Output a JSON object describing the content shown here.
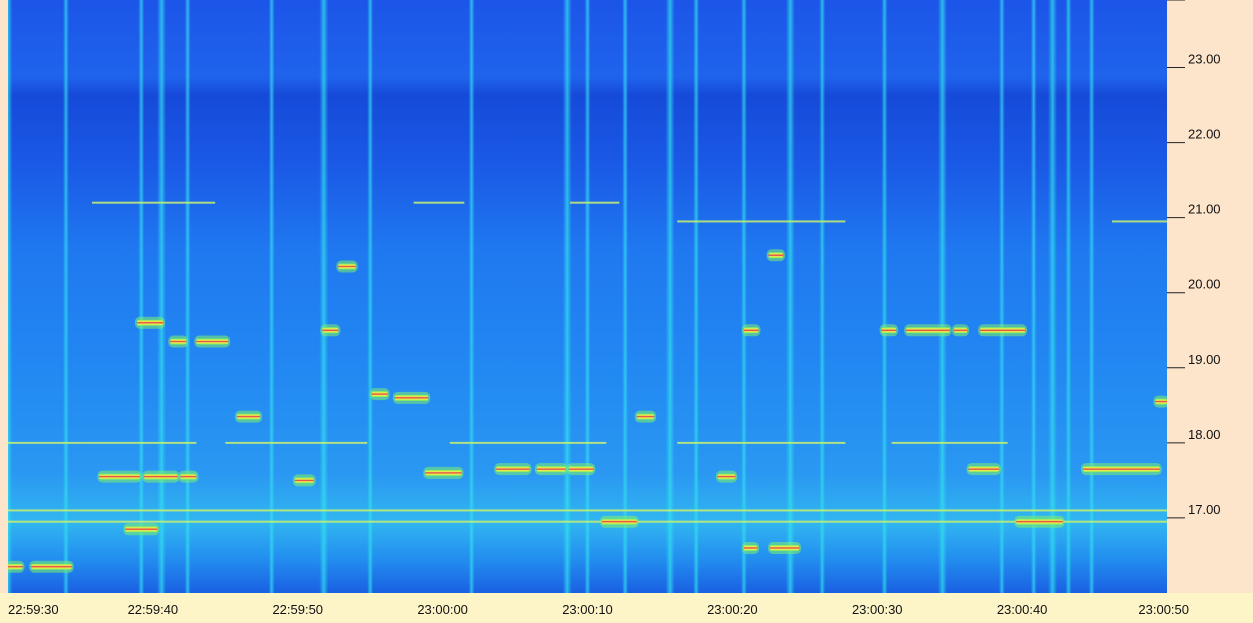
{
  "chart_data": {
    "type": "heatmap",
    "title": "",
    "xlabel": "",
    "ylabel": "",
    "x_ticks": [
      "22:59:30",
      "22:59:40",
      "22:59:50",
      "23:00:00",
      "23:00:10",
      "23:00:20",
      "23:00:30",
      "23:00:40",
      "23:00:50"
    ],
    "y_ticks": [
      "23.00",
      "22.00",
      "21.00",
      "20.00",
      "19.00",
      "18.00",
      "17.00"
    ],
    "xlim": [
      "22:59:30",
      "23:00:50"
    ],
    "ylim": [
      16.0,
      23.9
    ],
    "colors": {
      "background_low": "#1a4fe6",
      "background_mid": "#1e7ef0",
      "stripe_cyan": "#26d6f0",
      "trace_green": "#7fef6a",
      "trace_yellow": "#f3f24a",
      "trace_red": "#e2304a",
      "axis_panel": "#fde5cc",
      "axis_panel_bottom": "#fdf4c8"
    },
    "vertical_stripes_seconds": [
      0.0,
      4.0,
      9.2,
      10.6,
      12.4,
      18.2,
      21.8,
      25.0,
      32.0,
      38.6,
      40.0,
      42.6,
      45.7,
      47.5,
      50.8,
      54.0,
      56.2,
      60.5,
      64.5,
      68.6,
      70.8,
      72.1,
      73.2,
      74.8
    ],
    "horizontal_lines": [
      {
        "t_start": 0.0,
        "t_end": 5.4,
        "f": 18.0
      },
      {
        "t_start": 5.4,
        "t_end": 13.0,
        "f": 18.0
      },
      {
        "t_start": 15.0,
        "t_end": 24.8,
        "f": 18.0
      },
      {
        "t_start": 30.5,
        "t_end": 41.3,
        "f": 18.0
      },
      {
        "t_start": 46.2,
        "t_end": 57.8,
        "f": 18.0
      },
      {
        "t_start": 61.0,
        "t_end": 69.0,
        "f": 18.0
      },
      {
        "t_start": 46.2,
        "t_end": 57.8,
        "f": 20.95
      },
      {
        "t_start": 76.2,
        "t_end": 80.0,
        "f": 20.95
      },
      {
        "t_start": 5.8,
        "t_end": 14.3,
        "f": 21.2
      },
      {
        "t_start": 28.0,
        "t_end": 31.5,
        "f": 21.2
      },
      {
        "t_start": 38.8,
        "t_end": 42.2,
        "f": 21.2
      },
      {
        "t_start": 0.0,
        "t_end": 80.0,
        "f": 16.95
      },
      {
        "t_start": 0.0,
        "t_end": 80.0,
        "f": 17.1
      }
    ],
    "events": [
      {
        "t_start": 0.0,
        "t_end": 1.0,
        "f": 16.35
      },
      {
        "t_start": 1.6,
        "t_end": 4.4,
        "f": 16.35
      },
      {
        "t_start": 6.3,
        "t_end": 9.1,
        "f": 17.55
      },
      {
        "t_start": 9.4,
        "t_end": 11.7,
        "f": 17.55
      },
      {
        "t_start": 11.9,
        "t_end": 13.0,
        "f": 17.55
      },
      {
        "t_start": 8.1,
        "t_end": 10.3,
        "f": 16.85
      },
      {
        "t_start": 8.9,
        "t_end": 10.7,
        "f": 19.6
      },
      {
        "t_start": 11.2,
        "t_end": 12.3,
        "f": 19.35
      },
      {
        "t_start": 13.0,
        "t_end": 15.2,
        "f": 19.35
      },
      {
        "t_start": 15.8,
        "t_end": 17.4,
        "f": 18.35
      },
      {
        "t_start": 19.8,
        "t_end": 21.1,
        "f": 17.5
      },
      {
        "t_start": 22.8,
        "t_end": 24.0,
        "f": 20.35
      },
      {
        "t_start": 21.7,
        "t_end": 22.8,
        "f": 19.5
      },
      {
        "t_start": 25.1,
        "t_end": 26.2,
        "f": 18.65
      },
      {
        "t_start": 26.7,
        "t_end": 29.0,
        "f": 18.6
      },
      {
        "t_start": 28.8,
        "t_end": 31.3,
        "f": 17.6
      },
      {
        "t_start": 33.7,
        "t_end": 36.0,
        "f": 17.65
      },
      {
        "t_start": 36.5,
        "t_end": 38.5,
        "f": 17.65
      },
      {
        "t_start": 38.7,
        "t_end": 40.4,
        "f": 17.65
      },
      {
        "t_start": 41.0,
        "t_end": 43.4,
        "f": 16.95
      },
      {
        "t_start": 43.4,
        "t_end": 44.6,
        "f": 18.35
      },
      {
        "t_start": 49.0,
        "t_end": 50.2,
        "f": 17.55
      },
      {
        "t_start": 50.8,
        "t_end": 51.8,
        "f": 19.5
      },
      {
        "t_start": 50.8,
        "t_end": 51.7,
        "f": 16.6
      },
      {
        "t_start": 52.6,
        "t_end": 54.6,
        "f": 16.6
      },
      {
        "t_start": 52.5,
        "t_end": 53.5,
        "f": 20.5
      },
      {
        "t_start": 60.3,
        "t_end": 61.3,
        "f": 19.5
      },
      {
        "t_start": 62.0,
        "t_end": 65.0,
        "f": 19.5
      },
      {
        "t_start": 65.3,
        "t_end": 66.2,
        "f": 19.5
      },
      {
        "t_start": 67.1,
        "t_end": 70.2,
        "f": 19.5
      },
      {
        "t_start": 66.3,
        "t_end": 68.4,
        "f": 17.65
      },
      {
        "t_start": 69.6,
        "t_end": 72.8,
        "f": 16.95
      },
      {
        "t_start": 74.2,
        "t_end": 79.5,
        "f": 17.65
      },
      {
        "t_start": 79.2,
        "t_end": 80.0,
        "f": 18.55
      }
    ]
  }
}
